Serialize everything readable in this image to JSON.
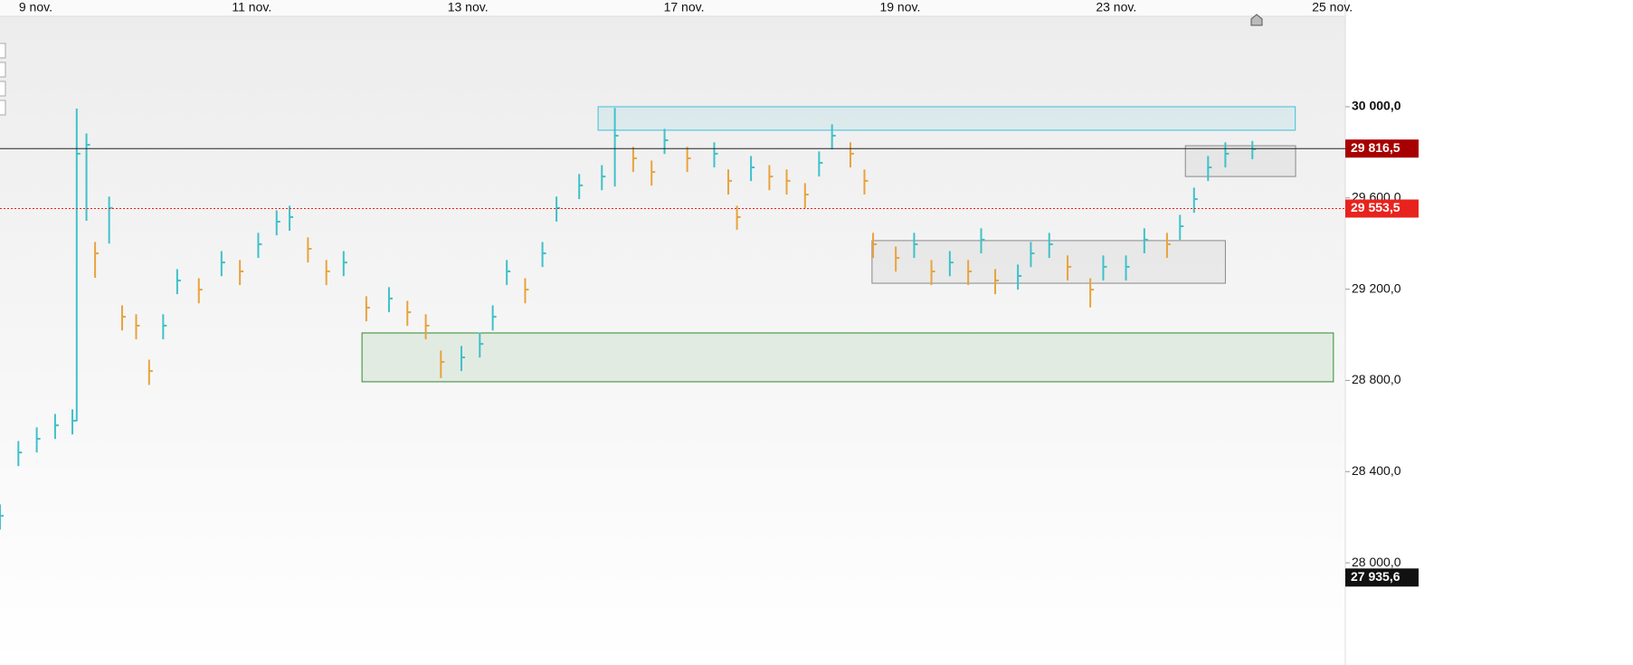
{
  "chart_data": {
    "type": "hlc",
    "up_color": "#3fc1c9",
    "down_color": "#e8a33d",
    "xlim": [
      -0.33,
      12.12
    ],
    "ylim": [
      27552,
      30468
    ],
    "xticks": [
      {
        "value": 0,
        "label": "9 nov."
      },
      {
        "value": 2,
        "label": "11 nov."
      },
      {
        "value": 4,
        "label": "13 nov."
      },
      {
        "value": 6,
        "label": "17 nov."
      },
      {
        "value": 8,
        "label": "19 nov."
      },
      {
        "value": 10,
        "label": "23 nov."
      },
      {
        "value": 12,
        "label": "25 nov."
      }
    ],
    "yticks": [
      {
        "value": 30000,
        "label": "30 000,0"
      },
      {
        "value": 29600,
        "label": "29 600,0"
      },
      {
        "value": 29200,
        "label": "29 200,0"
      },
      {
        "value": 28800,
        "label": "28 800,0"
      },
      {
        "value": 28400,
        "label": "28 400,0"
      },
      {
        "value": 28000,
        "label": "28 000,0"
      }
    ],
    "x": [
      -0.33,
      -0.16,
      0.01,
      0.18,
      0.34,
      0.38,
      0.47,
      0.55,
      0.68,
      0.8,
      0.93,
      1.05,
      1.18,
      1.31,
      1.51,
      1.72,
      1.89,
      2.06,
      2.23,
      2.35,
      2.52,
      2.69,
      2.85,
      3.06,
      3.27,
      3.44,
      3.61,
      3.75,
      3.94,
      4.11,
      4.23,
      4.36,
      4.53,
      4.69,
      4.82,
      5.03,
      5.24,
      5.36,
      5.53,
      5.7,
      5.82,
      6.03,
      6.28,
      6.41,
      6.49,
      6.62,
      6.79,
      6.95,
      7.12,
      7.25,
      7.37,
      7.54,
      7.67,
      7.75,
      7.96,
      8.13,
      8.29,
      8.46,
      8.63,
      8.75,
      8.88,
      9.09,
      9.21,
      9.38,
      9.55,
      9.76,
      9.88,
      10.09,
      10.26,
      10.47,
      10.59,
      10.72,
      10.85,
      11.01,
      11.26
    ],
    "values": [
      28206,
      28484,
      28544,
      28603,
      28623,
      29794,
      29833,
      29357,
      29556,
      29079,
      29040,
      28841,
      29040,
      29238,
      29198,
      29317,
      29278,
      29397,
      29496,
      29516,
      29377,
      29278,
      29317,
      29119,
      29159,
      29099,
      29040,
      28881,
      28901,
      28960,
      29079,
      29278,
      29198,
      29357,
      29556,
      29655,
      29694,
      29873,
      29774,
      29714,
      29853,
      29774,
      29794,
      29675,
      29516,
      29734,
      29694,
      29675,
      29615,
      29754,
      29873,
      29794,
      29675,
      29397,
      29337,
      29397,
      29278,
      29317,
      29278,
      29417,
      29238,
      29258,
      29357,
      29397,
      29298,
      29198,
      29298,
      29298,
      29417,
      29397,
      29476,
      29595,
      29734,
      29794,
      29814
    ],
    "high": [
      28256,
      28534,
      28594,
      28653,
      28673,
      29992,
      29883,
      29407,
      29606,
      29129,
      29090,
      28891,
      29090,
      29288,
      29248,
      29367,
      29328,
      29447,
      29546,
      29566,
      29427,
      29328,
      29367,
      29169,
      29209,
      29149,
      29090,
      28931,
      28951,
      29010,
      29129,
      29328,
      29248,
      29407,
      29606,
      29705,
      29744,
      29995,
      29824,
      29764,
      29903,
      29824,
      29844,
      29725,
      29566,
      29784,
      29744,
      29725,
      29665,
      29804,
      29923,
      29844,
      29725,
      29447,
      29387,
      29447,
      29328,
      29367,
      29328,
      29467,
      29288,
      29308,
      29407,
      29447,
      29348,
      29248,
      29348,
      29348,
      29467,
      29447,
      29526,
      29645,
      29784,
      29844,
      29850
    ],
    "low": [
      28146,
      28424,
      28484,
      28543,
      28563,
      28620,
      29500,
      29250,
      29400,
      29019,
      28980,
      28780,
      28980,
      29178,
      29138,
      29257,
      29218,
      29337,
      29436,
      29456,
      29317,
      29218,
      29257,
      29059,
      29099,
      29039,
      28980,
      28810,
      28841,
      28900,
      29019,
      29218,
      29138,
      29297,
      29496,
      29595,
      29634,
      29650,
      29714,
      29654,
      29793,
      29714,
      29734,
      29615,
      29460,
      29674,
      29634,
      29615,
      29555,
      29694,
      29813,
      29734,
      29615,
      29337,
      29277,
      29337,
      29218,
      29257,
      29218,
      29357,
      29178,
      29198,
      29297,
      29337,
      29238,
      29120,
      29238,
      29238,
      29357,
      29337,
      29416,
      29535,
      29674,
      29734,
      29770
    ],
    "zones": [
      {
        "x1": 5.205,
        "x2": 11.657,
        "y1": 29897,
        "y2": 30000,
        "color": "#3fbfd8"
      },
      {
        "x1": 3.02,
        "x2": 12.01,
        "y1": 28794,
        "y2": 29008,
        "color": "#2e8b2e"
      },
      {
        "x1": 7.74,
        "x2": 11.01,
        "y1": 29226,
        "y2": 29413,
        "color": "#888888"
      },
      {
        "x1": 10.64,
        "x2": 11.66,
        "y1": 29694,
        "y2": 29829,
        "color": "#888888"
      }
    ],
    "price_lines": [
      {
        "value": 29816.5,
        "label": "29 816,5",
        "color": "#a80000",
        "line": "solid"
      },
      {
        "value": 29553.5,
        "label": "29 553,5",
        "color": "#e8231e",
        "line": "dotted"
      },
      {
        "value": 27935.6,
        "label": "27 935,6",
        "color": "#111111",
        "line": "none"
      }
    ]
  }
}
